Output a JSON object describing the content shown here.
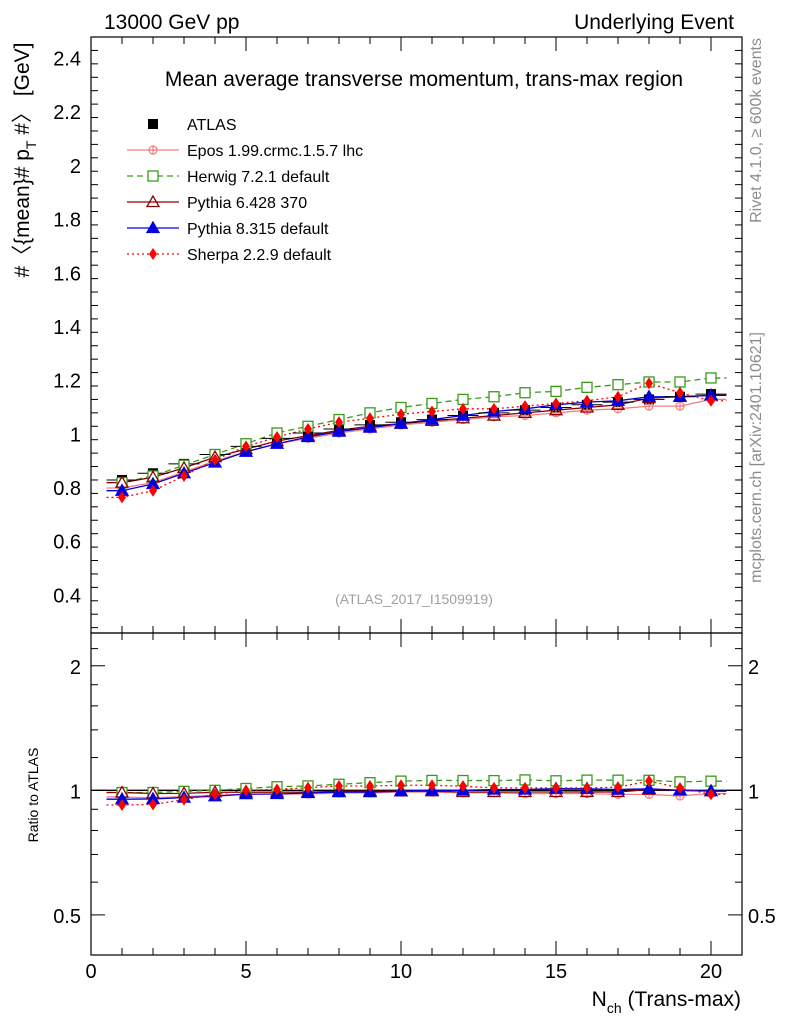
{
  "header": {
    "left": "13000 GeV pp",
    "right": "Underlying Event"
  },
  "side_labels": {
    "upper": "Rivet 4.1.0, ≥ 600k events",
    "lower": "mcplots.cern.ch [arXiv:2401.10621]"
  },
  "chart_data": [
    {
      "type": "line",
      "title": "Mean average transverse momentum, trans-max region",
      "analysis_tag": "(ATLAS_2017_I1509919)",
      "ylabel": "#〈{mean}# p_T #〉 [GeV]",
      "xlabel": "N_ch (Trans-max)",
      "xlim": [
        0,
        21
      ],
      "ylim": [
        0.26,
        2.48
      ],
      "x_ticks": [
        0,
        5,
        10,
        15,
        20
      ],
      "y_ticks": [
        0.4,
        0.6,
        0.8,
        1,
        1.2,
        1.4,
        1.6,
        1.8,
        2,
        2.2,
        2.4
      ],
      "x": [
        1,
        2,
        3,
        4,
        5,
        6,
        7,
        8,
        9,
        10,
        11,
        12,
        13,
        14,
        15,
        16,
        17,
        18,
        19,
        20
      ],
      "series": [
        {
          "name": "ATLAS",
          "color": "#000000",
          "marker": "square-filled",
          "dash": "none",
          "values": [
            0.83,
            0.855,
            0.89,
            0.925,
            0.955,
            0.985,
            1.005,
            1.02,
            1.035,
            1.045,
            1.055,
            1.07,
            1.08,
            1.09,
            1.1,
            1.11,
            1.12,
            1.13,
            1.14,
            1.15
          ]
        },
        {
          "name": "Epos 1.99.crmc.1.5.7 lhc",
          "color": "#f08080",
          "marker": "cross-circle",
          "dash": "none",
          "values": [
            0.8,
            0.82,
            0.86,
            0.9,
            0.935,
            0.965,
            0.985,
            1.005,
            1.02,
            1.035,
            1.045,
            1.055,
            1.065,
            1.07,
            1.08,
            1.09,
            1.095,
            1.105,
            1.105,
            1.13
          ]
        },
        {
          "name": "Herwig 7.2.1 default",
          "color": "#3a9a1a",
          "marker": "square-open",
          "dash": "6,4",
          "values": [
            0.82,
            0.845,
            0.885,
            0.925,
            0.965,
            1.005,
            1.03,
            1.055,
            1.08,
            1.1,
            1.115,
            1.13,
            1.14,
            1.155,
            1.16,
            1.175,
            1.185,
            1.195,
            1.195,
            1.21
          ]
        },
        {
          "name": "Pythia 6.428 370",
          "color": "#8b0000",
          "marker": "triangle-open",
          "dash": "none",
          "values": [
            0.82,
            0.84,
            0.875,
            0.915,
            0.945,
            0.975,
            0.995,
            1.015,
            1.03,
            1.04,
            1.05,
            1.06,
            1.07,
            1.08,
            1.09,
            1.1,
            1.11,
            1.135,
            1.14,
            1.145
          ]
        },
        {
          "name": "Pythia 8.315 default",
          "color": "#0000e0",
          "marker": "triangle-filled",
          "dash": "none",
          "values": [
            0.79,
            0.815,
            0.855,
            0.895,
            0.935,
            0.965,
            0.99,
            1.01,
            1.025,
            1.04,
            1.055,
            1.07,
            1.085,
            1.095,
            1.11,
            1.12,
            1.125,
            1.14,
            1.14,
            1.145
          ]
        },
        {
          "name": "Sherpa 2.2.9 default",
          "color": "#ff0000",
          "marker": "diamond-filled",
          "dash": "2,3",
          "values": [
            0.765,
            0.79,
            0.845,
            0.905,
            0.955,
            0.99,
            1.02,
            1.045,
            1.06,
            1.075,
            1.085,
            1.095,
            1.095,
            1.105,
            1.115,
            1.125,
            1.14,
            1.19,
            1.155,
            1.125
          ]
        }
      ]
    },
    {
      "type": "line",
      "title": "",
      "ylabel": "Ratio to ATLAS",
      "xlabel": "N_ch (Trans-max)",
      "xlim": [
        0,
        21
      ],
      "ylim": [
        0.4,
        2.4
      ],
      "yscale": "log",
      "y_ticks": [
        0.5,
        1,
        2
      ],
      "y_tick_labels": [
        "0.5",
        "1",
        "2"
      ],
      "reference": 1
    }
  ]
}
